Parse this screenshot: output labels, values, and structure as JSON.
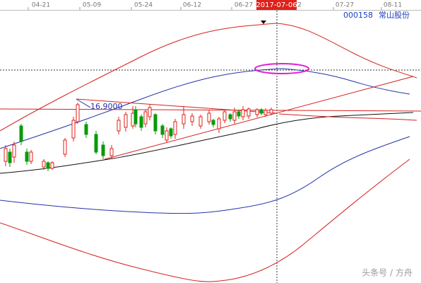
{
  "top_axis": {
    "dates": [
      "04-21",
      "05-09",
      "05-24",
      "06-12",
      "06-27"
    ],
    "cursor_date": "2017-07-06",
    "hidden_date_tail": "2",
    "dates_after": [
      "07-27",
      "08-11"
    ]
  },
  "stock": {
    "code": "000158",
    "name": "常山股份"
  },
  "price_label": "16.9000",
  "watermark": "头条号 / 方舟"
}
